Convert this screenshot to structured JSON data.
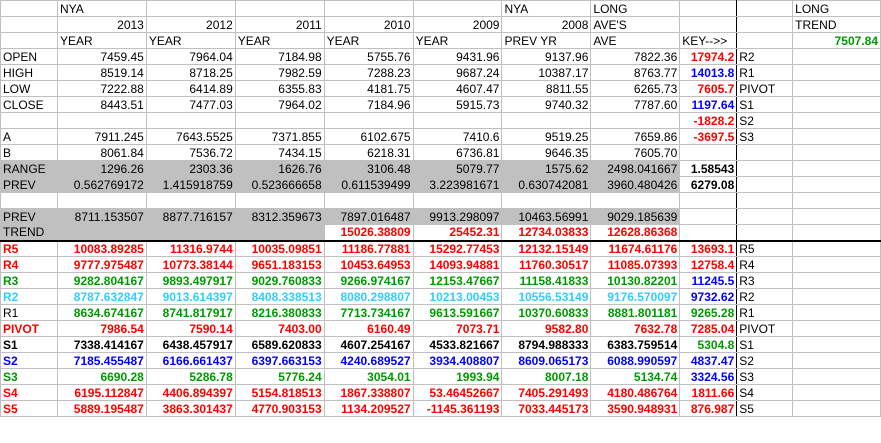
{
  "header": {
    "row1": [
      "",
      "NYA",
      "",
      "",
      "",
      "",
      "NYA",
      "LONG",
      "",
      "LONG"
    ],
    "row2": [
      "",
      "2013",
      "2012",
      "2011",
      "2010",
      "2009",
      "2008",
      "AVE'S",
      "",
      "TREND"
    ],
    "row3": [
      "",
      "YEAR",
      "YEAR",
      "YEAR",
      "YEAR",
      "YEAR",
      "PREV YR",
      "AVE",
      "KEY-->>",
      "7507.84"
    ]
  },
  "rows": [
    {
      "label": "OPEN",
      "v": [
        "7459.45",
        "7964.04",
        "7184.98",
        "5755.76",
        "9431.96",
        "9137.96",
        "7822.36"
      ],
      "key": "17974.2",
      "keycolor": "red",
      "tag": "R2"
    },
    {
      "label": "HIGH",
      "v": [
        "8519.14",
        "8718.25",
        "7982.59",
        "7288.23",
        "9687.24",
        "10387.17",
        "8763.77"
      ],
      "key": "14013.8",
      "keycolor": "blue",
      "tag": "R1"
    },
    {
      "label": "LOW",
      "v": [
        "7222.88",
        "6414.89",
        "6355.83",
        "4181.75",
        "4607.47",
        "8811.55",
        "6265.73"
      ],
      "key": "7605.7",
      "keycolor": "red",
      "tag": "PIVOT"
    },
    {
      "label": "CLOSE",
      "v": [
        "8443.51",
        "7477.03",
        "7964.02",
        "7184.96",
        "5915.73",
        "9740.32",
        "7787.60"
      ],
      "key": "1197.64",
      "keycolor": "blue",
      "tag": "S1"
    },
    {
      "label": "",
      "v": [
        "",
        "",
        "",
        "",
        "",
        "",
        ""
      ],
      "key": "-1828.2",
      "keycolor": "red",
      "tag": "S2"
    },
    {
      "label": "A",
      "v": [
        "7911.245",
        "7643.5525",
        "7371.855",
        "6102.675",
        "7410.6",
        "9519.25",
        "7659.86"
      ],
      "key": "-3697.5",
      "keycolor": "red",
      "tag": "S3"
    },
    {
      "label": "B",
      "v": [
        "8061.84",
        "7536.72",
        "7434.15",
        "6218.31",
        "6736.81",
        "9646.35",
        "7605.70"
      ],
      "key": "",
      "keycolor": "black",
      "tag": ""
    },
    {
      "label": "RANGE",
      "v": [
        "1296.26",
        "2303.36",
        "1626.76",
        "3106.48",
        "5079.77",
        "1575.62",
        "2498.041667"
      ],
      "key": "1.58543",
      "keycolor": "black",
      "tag": "",
      "gray": true
    },
    {
      "label": "PREV",
      "v": [
        "0.562769172",
        "1.415918759",
        "0.523666658",
        "0.611539499",
        "3.223981671",
        "0.630742081",
        "3960.480426"
      ],
      "key": "6279.08",
      "keycolor": "black",
      "tag": "",
      "gray": true
    },
    {
      "label": "",
      "v": [
        "",
        "",
        "",
        "",
        "",
        "",
        ""
      ],
      "key": "",
      "keycolor": "black",
      "tag": ""
    },
    {
      "label": "PREV",
      "v": [
        "8711.153507",
        "8877.716157",
        "8312.359673",
        "7897.016487",
        "9913.298097",
        "10463.56991",
        "9029.185639"
      ],
      "key": "",
      "keycolor": "black",
      "tag": "",
      "gray": true
    },
    {
      "label": "TREND",
      "v": [
        "",
        "",
        "",
        "15026.38809",
        "25452.31",
        "12734.03833",
        "12628.86368"
      ],
      "key": "",
      "keycolor": "black",
      "tag": "",
      "gray": true,
      "redvals": true
    }
  ],
  "pivots": [
    {
      "label": "R5",
      "color": "red",
      "v": [
        "10083.89285",
        "11316.9744",
        "10035.09851",
        "11186.77881",
        "15292.77453",
        "12132.15149",
        "11674.61176"
      ],
      "key": "13693.1",
      "keycolor": "red",
      "tag": "R5"
    },
    {
      "label": "R4",
      "color": "red",
      "v": [
        "9777.975487",
        "10773.38144",
        "9651.183153",
        "10453.64953",
        "14093.94881",
        "11760.30517",
        "11085.07393"
      ],
      "key": "12758.4",
      "keycolor": "red",
      "tag": "R4"
    },
    {
      "label": "R3",
      "color": "green",
      "v": [
        "9282.804167",
        "9893.497917",
        "9029.760833",
        "9266.974167",
        "12153.47667",
        "11158.41833",
        "10130.82201"
      ],
      "key": "11245.5",
      "keycolor": "blue",
      "tag": "R3"
    },
    {
      "label": "R2",
      "color": "cyan",
      "v": [
        "8787.632847",
        "9013.614397",
        "8408.338513",
        "8080.298807",
        "10213.00453",
        "10556.53149",
        "9176.570097"
      ],
      "key": "9732.62",
      "keycolor": "blue",
      "tag": "R2"
    },
    {
      "label": "R1",
      "color": "green",
      "v": [
        "8634.674167",
        "8741.817917",
        "8216.380833",
        "7713.734167",
        "9613.591667",
        "10370.60833",
        "8881.801181"
      ],
      "key": "9265.28",
      "keycolor": "green",
      "tag": "R1"
    },
    {
      "label": "PIVOT",
      "color": "red",
      "v": [
        "7986.54",
        "7590.14",
        "7403.00",
        "6160.49",
        "7073.71",
        "9582.80",
        "7632.78"
      ],
      "key": "7285.04",
      "keycolor": "red",
      "tag": "PIVOT"
    },
    {
      "label": "S1",
      "color": "black",
      "v": [
        "7338.414167",
        "6438.457917",
        "6589.620833",
        "4607.254167",
        "4533.821667",
        "8794.988333",
        "6383.759514"
      ],
      "key": "5304.8",
      "keycolor": "green",
      "tag": "S1"
    },
    {
      "label": "S2",
      "color": "blue",
      "v": [
        "7185.455487",
        "6166.661437",
        "6397.663153",
        "4240.689527",
        "3934.408807",
        "8609.065173",
        "6088.990597"
      ],
      "key": "4837.47",
      "keycolor": "blue",
      "tag": "S2"
    },
    {
      "label": "S3",
      "color": "green",
      "v": [
        "6690.28",
        "5286.78",
        "5776.24",
        "3054.01",
        "1993.94",
        "8007.18",
        "5134.74"
      ],
      "key": "3324.56",
      "keycolor": "blue",
      "tag": "S3"
    },
    {
      "label": "S4",
      "color": "red",
      "v": [
        "6195.112847",
        "4406.894397",
        "5154.818513",
        "1867.338807",
        "53.46452667",
        "7405.291493",
        "4180.486764"
      ],
      "key": "1811.66",
      "keycolor": "red",
      "tag": "S4"
    },
    {
      "label": "S5",
      "color": "red",
      "v": [
        "5889.195487",
        "3863.301437",
        "4770.903153",
        "1134.209527",
        "-1145.361193",
        "7033.445173",
        "3590.948931"
      ],
      "key": "876.987",
      "keycolor": "red",
      "tag": "S5"
    }
  ],
  "colors": {
    "red": "#ff0000",
    "blue": "#0000ff",
    "green": "#009900",
    "cyan": "#33ccff",
    "gray": "#c0c0c0"
  }
}
